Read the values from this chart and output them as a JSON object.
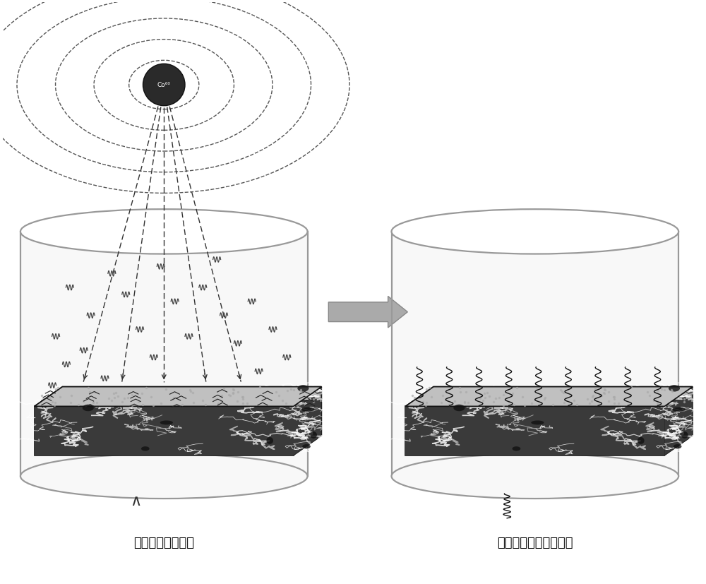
{
  "label_left": "丙烯酸羟乙酯单体",
  "label_right": "丙烯酸羟乙酯聚合物钉",
  "co60_label": "Co⁶⁰",
  "bg_color": "#ffffff",
  "text_color": "#000000",
  "font_size_label": 13
}
